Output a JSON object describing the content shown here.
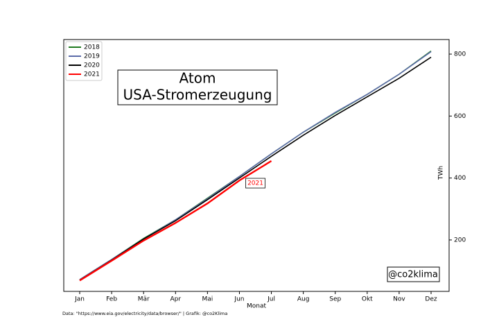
{
  "chart_data": {
    "type": "line",
    "title": [
      "Atom",
      "USA-Stromerzeugung"
    ],
    "xlabel": "Monat",
    "ylabel": "TWh",
    "watermark": "@co2klima",
    "source": "Data: \"https://www.eia.gov/electricity/data/browser/\" | Grafik: @co2Klima",
    "categories": [
      "Jan",
      "Feb",
      "Mär",
      "Apr",
      "Mai",
      "Jun",
      "Jul",
      "Aug",
      "Sep",
      "Okt",
      "Nov",
      "Dez"
    ],
    "series": [
      {
        "name": "2018",
        "color": "#1f7a1f",
        "values": [
          72,
          137,
          205,
          265,
          335,
          405,
          478,
          548,
          610,
          670,
          735,
          810
        ]
      },
      {
        "name": "2019",
        "color": "#5a6aa8",
        "values": [
          72,
          137,
          203,
          265,
          333,
          405,
          478,
          548,
          612,
          670,
          735,
          808
        ]
      },
      {
        "name": "2020",
        "color": "#000000",
        "values": [
          70,
          135,
          203,
          262,
          330,
          400,
          470,
          538,
          602,
          662,
          722,
          790
        ]
      },
      {
        "name": "2021",
        "color": "#ff0000",
        "values": [
          69,
          133,
          198,
          255,
          318,
          392,
          455,
          null,
          null,
          null,
          null,
          null
        ]
      }
    ],
    "ylim": [
      34,
      847
    ],
    "yticks": [
      200,
      400,
      600,
      800
    ],
    "legend": "upper left"
  }
}
